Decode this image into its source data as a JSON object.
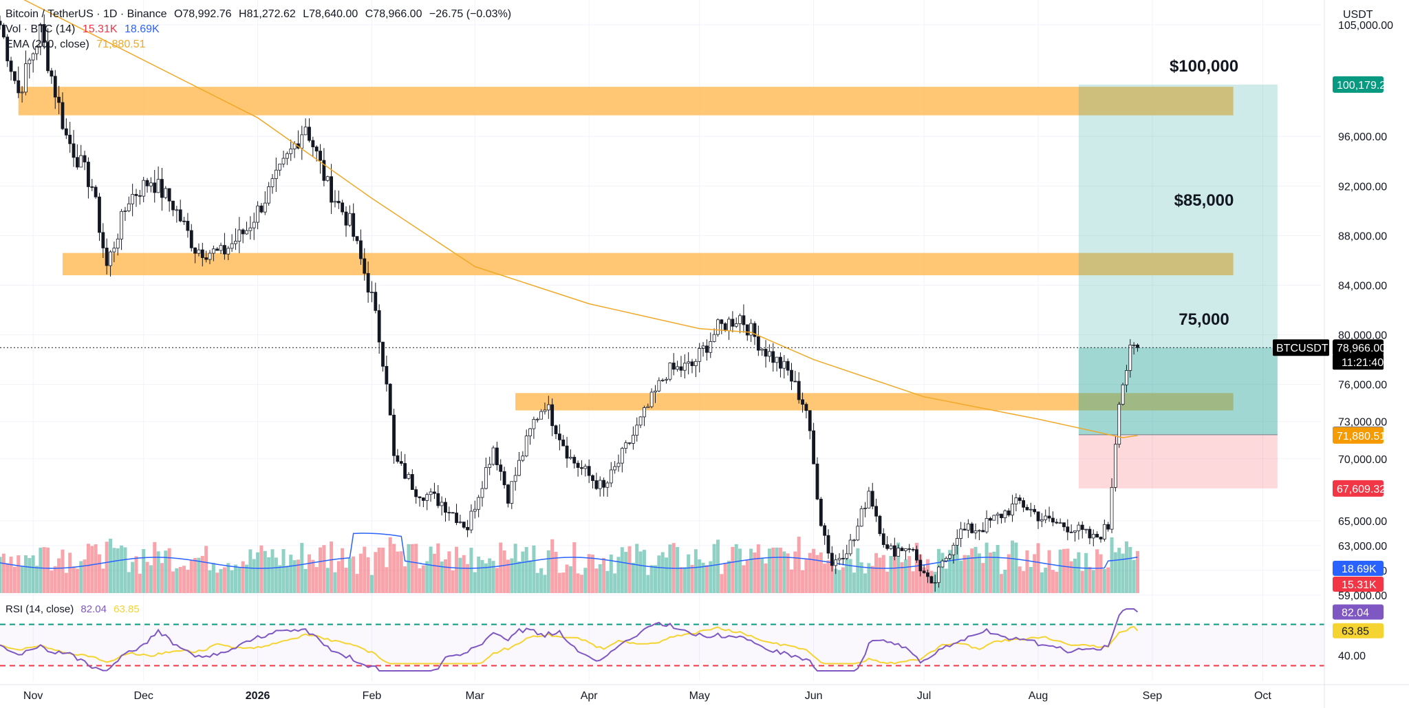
{
  "header": {
    "symbol_line": "Bitcoin / TetherUS · 1D · Binance",
    "ohlc": {
      "o": "O78,992.76",
      "h": "H81,272.62",
      "l": "L78,640.00",
      "c": "C78,966.00",
      "chg": "−26.75 (−0.03%)"
    },
    "vol_label": "Vol · BTC (14)",
    "vol_value_a": "15.31K",
    "vol_value_b": "18.69K",
    "ema_label": "EMA (200, close)",
    "ema_value": "71,880.51",
    "rsi_label": "RSI (14, close)",
    "rsi_value_a": "82.04",
    "rsi_value_b": "63.85",
    "currency": "USDT"
  },
  "colors": {
    "up": "#089981",
    "down": "#f23645",
    "ema": "#f0a826",
    "zone": "#ffb74d",
    "target": "#26a69a",
    "stop": "#f7525f",
    "vol_ma": "#2962ff",
    "rsi": "#7e57c2",
    "rsi_ma": "#f5d431"
  },
  "chart_data": {
    "type": "candlestick",
    "symbol": "BTCUSDT",
    "ylim": [
      59000,
      107000
    ],
    "price_ticks": [
      "105,000.00",
      "96,000.00",
      "92,000.00",
      "88,000.00",
      "84,000.00",
      "80,000.00",
      "76,000.00",
      "73,000.00",
      "70,000.00",
      "65,000.00",
      "63,000.00",
      "61,000.00",
      "59,000.00"
    ],
    "x_ticks": [
      "Nov",
      "Dec",
      "2026",
      "Feb",
      "Mar",
      "Apr",
      "May",
      "Jun",
      "Jul",
      "Aug",
      "Sep",
      "Oct"
    ],
    "x_range": [
      "2025-10-23",
      "2026-10-14"
    ],
    "last_close": 78966.0,
    "timer": "11:21:40",
    "price_tags": [
      {
        "label": "100,179.26",
        "value": 100179.26,
        "color": "#089981"
      },
      {
        "label": "78,966.00",
        "value": 78966.0,
        "color": "#000000"
      },
      {
        "label": "71,935.89",
        "value": 71935.89,
        "color": "#787b86"
      },
      {
        "label": "71,880.51",
        "value": 71880.51,
        "color": "#f59a00"
      },
      {
        "label": "67,609.32",
        "value": 67609.32,
        "color": "#f23645"
      }
    ],
    "resistance_zones": [
      {
        "label": "$100,000",
        "low": 97700,
        "high": 100000
      },
      {
        "label": "$85,000",
        "low": 84800,
        "high": 86600
      },
      {
        "label": "75,000",
        "low": 73900,
        "high": 75300
      }
    ],
    "position": {
      "entry": 71935.89,
      "target": 100179.26,
      "stop": 67609.32
    },
    "anchors": [
      [
        "2025-10-23",
        105000
      ],
      [
        "2025-10-28",
        99500
      ],
      [
        "2025-11-03",
        104500
      ],
      [
        "2025-11-10",
        96000
      ],
      [
        "2025-11-17",
        92000
      ],
      [
        "2025-11-21",
        85500
      ],
      [
        "2025-11-27",
        91000
      ],
      [
        "2025-12-03",
        92500
      ],
      [
        "2025-12-09",
        90500
      ],
      [
        "2025-12-15",
        87000
      ],
      [
        "2025-12-22",
        86500
      ],
      [
        "2025-12-29",
        88500
      ],
      [
        "2026-01-06",
        92500
      ],
      [
        "2026-01-14",
        97000
      ],
      [
        "2026-01-20",
        92000
      ],
      [
        "2026-01-26",
        89000
      ],
      [
        "2026-02-01",
        83000
      ],
      [
        "2026-02-05",
        76500
      ],
      [
        "2026-02-07",
        70000
      ],
      [
        "2026-02-13",
        67500
      ],
      [
        "2026-02-20",
        66500
      ],
      [
        "2026-02-27",
        64500
      ],
      [
        "2026-03-06",
        71000
      ],
      [
        "2026-03-10",
        67000
      ],
      [
        "2026-03-17",
        73000
      ],
      [
        "2026-03-20",
        74500
      ],
      [
        "2026-03-27",
        70000
      ],
      [
        "2026-04-05",
        67500
      ],
      [
        "2026-04-15",
        73000
      ],
      [
        "2026-04-22",
        77000
      ],
      [
        "2026-04-29",
        77500
      ],
      [
        "2026-05-06",
        80500
      ],
      [
        "2026-05-12",
        81500
      ],
      [
        "2026-05-18",
        79000
      ],
      [
        "2026-05-25",
        77000
      ],
      [
        "2026-05-30",
        74000
      ],
      [
        "2026-06-03",
        65000
      ],
      [
        "2026-06-06",
        61500
      ],
      [
        "2026-06-12",
        63500
      ],
      [
        "2026-06-16",
        67500
      ],
      [
        "2026-06-21",
        62500
      ],
      [
        "2026-06-27",
        63000
      ],
      [
        "2026-07-03",
        59500
      ],
      [
        "2026-07-10",
        64000
      ],
      [
        "2026-07-17",
        64500
      ],
      [
        "2026-07-27",
        66500
      ],
      [
        "2026-08-03",
        65000
      ],
      [
        "2026-08-10",
        64500
      ],
      [
        "2026-08-16",
        63500
      ],
      [
        "2026-08-20",
        64500
      ],
      [
        "2026-08-23",
        75000
      ],
      [
        "2026-08-26",
        78500
      ],
      [
        "2026-08-28",
        78966
      ]
    ],
    "ema_points": [
      [
        "2025-10-23",
        108000
      ],
      [
        "2026-01-01",
        97500
      ],
      [
        "2026-02-01",
        91000
      ],
      [
        "2026-03-01",
        85500
      ],
      [
        "2026-04-01",
        82500
      ],
      [
        "2026-05-01",
        80500
      ],
      [
        "2026-05-15",
        80200
      ],
      [
        "2026-06-01",
        78000
      ],
      [
        "2026-07-01",
        75000
      ],
      [
        "2026-08-01",
        73200
      ],
      [
        "2026-08-24",
        71700
      ],
      [
        "2026-08-28",
        71880.51
      ]
    ],
    "volume": {
      "ma_labels": [
        "18.69K",
        "15.31K"
      ]
    },
    "rsi": {
      "overbought": 70,
      "oversold": 30,
      "tick": "40.00",
      "last": 82.04,
      "ma_last": 63.85
    }
  }
}
